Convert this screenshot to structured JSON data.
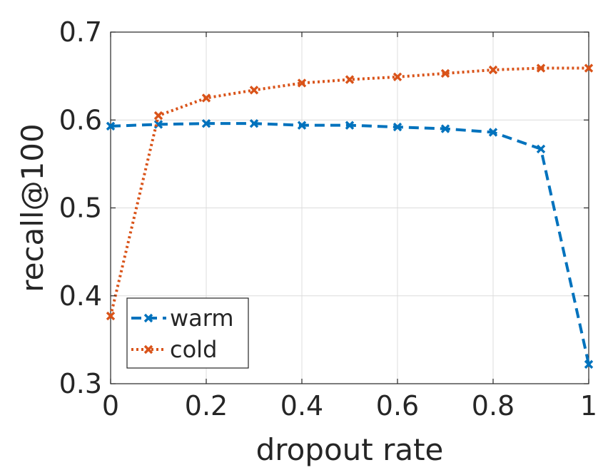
{
  "chart_data": {
    "type": "line",
    "xlabel": "dropout rate",
    "ylabel": "recall@100",
    "xlim": [
      0,
      1
    ],
    "ylim": [
      0.3,
      0.7
    ],
    "xticks": [
      "0",
      "0.2",
      "0.4",
      "0.6",
      "0.8",
      "1"
    ],
    "yticks": [
      "0.3",
      "0.4",
      "0.5",
      "0.6",
      "0.7"
    ],
    "grid": true,
    "legend_position": "bottom-left",
    "x": [
      0,
      0.1,
      0.2,
      0.3,
      0.4,
      0.5,
      0.6,
      0.7,
      0.8,
      0.9,
      1.0
    ],
    "series": [
      {
        "name": "warm",
        "color": "#0072BD",
        "line_style": "dashed",
        "marker": "x",
        "values": [
          0.593,
          0.595,
          0.596,
          0.596,
          0.594,
          0.594,
          0.592,
          0.59,
          0.586,
          0.567,
          0.322
        ]
      },
      {
        "name": "cold",
        "color": "#D95319",
        "line_style": "dotted",
        "marker": "x",
        "values": [
          0.377,
          0.605,
          0.625,
          0.634,
          0.642,
          0.646,
          0.649,
          0.653,
          0.657,
          0.659,
          0.659
        ]
      }
    ]
  }
}
